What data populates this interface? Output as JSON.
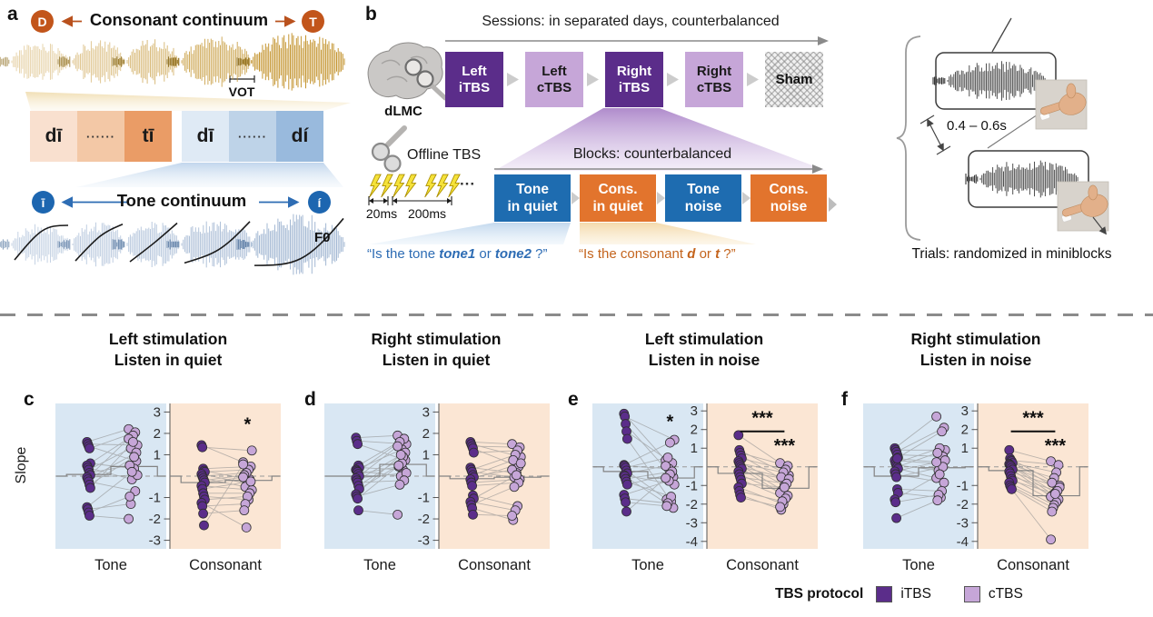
{
  "figure": {
    "panel_a": {
      "label": "a",
      "left_endpoint": "D",
      "right_endpoint": "T",
      "title": "Consonant continuum",
      "vot_label": "VOT",
      "syllable_boxes": [
        "dī",
        "······",
        "tī",
        "dī",
        "······",
        "dí"
      ],
      "tone_left_endpoint": "ī",
      "tone_right_endpoint": "í",
      "tone_title": "Tone continuum",
      "f0_label": "F0"
    },
    "panel_b": {
      "label": "b",
      "sessions_title": "Sessions: in separated days, counterbalanced",
      "target_label": "dLMC",
      "sessions": [
        {
          "line1": "Left",
          "line2": "iTBS",
          "variant": "dark"
        },
        {
          "line1": "Left",
          "line2": "cTBS",
          "variant": "light"
        },
        {
          "line1": "Right",
          "line2": "iTBS",
          "variant": "dark"
        },
        {
          "line1": "Right",
          "line2": "cTBS",
          "variant": "light"
        },
        {
          "line1": "Sham",
          "line2": "",
          "variant": "sham"
        }
      ],
      "offline_label": "Offline TBS",
      "ellipsis": "···",
      "pulse_interval": "20ms",
      "burst_interval": "200ms",
      "blocks_title": "Blocks: counterbalanced",
      "blocks": [
        {
          "line1": "Tone",
          "line2": "in quiet",
          "variant": "blue"
        },
        {
          "line1": "Cons.",
          "line2": "in quiet",
          "variant": "orange"
        },
        {
          "line1": "Tone",
          "line2": "noise",
          "variant": "blue"
        },
        {
          "line1": "Cons.",
          "line2": "noise",
          "variant": "orange"
        }
      ],
      "tone_question": {
        "prefix": "“Is the tone ",
        "word1": "tone1",
        "or": " or ",
        "word2": "tone2",
        "suffix": " ?”"
      },
      "consonant_question": {
        "prefix": "“Is the consonant ",
        "word1": "d",
        "or": " or ",
        "word2": "t",
        "suffix": " ?”"
      },
      "isi_label": "0.4 – 0.6s",
      "trials_note": "Trials: randomized in miniblocks"
    }
  },
  "chart_data": [
    {
      "type": "scatter",
      "panel_label": "c",
      "title1": "Left stimulation",
      "title2": "Listen in quiet",
      "ylabel": "Slope",
      "ylim": [
        -3.4,
        3.4
      ],
      "yticks": [
        3,
        2,
        1,
        -1,
        -2,
        -3
      ],
      "zero_line": true,
      "conditions": [
        {
          "name": "Tone",
          "itbs": [
            1.6,
            1.5,
            1.4,
            1.3,
            0.6,
            0.5,
            0.4,
            0.3,
            0.15,
            0.05,
            -0.05,
            -0.15,
            -0.25,
            -0.4,
            -0.55,
            -1.45,
            -1.55,
            -1.7,
            -1.85
          ],
          "ctbs": [
            2.2,
            1.45,
            0.7,
            2.05,
            0.35,
            1.9,
            -0.15,
            1.3,
            0.5,
            1.75,
            0.05,
            1.1,
            -0.7,
            0.9,
            1.6,
            0.2,
            -1.3,
            -0.95,
            -2.0
          ],
          "mean_itbs": 0.08,
          "mean_ctbs": 0.45,
          "sig_ctbs": null,
          "sig_pair": null
        },
        {
          "name": "Consonant",
          "itbs": [
            1.45,
            1.35,
            0.35,
            0.25,
            0.2,
            0.1,
            0.0,
            -0.1,
            -0.2,
            -0.3,
            -0.45,
            -0.6,
            -0.8,
            -0.95,
            -1.1,
            -1.25,
            -1.4,
            -1.75,
            -2.3
          ],
          "ctbs": [
            0.65,
            1.2,
            0.45,
            -0.15,
            0.3,
            -0.35,
            0.15,
            -0.5,
            0.05,
            -0.05,
            -0.65,
            -0.25,
            -0.8,
            -1.1,
            -0.95,
            -2.4,
            -1.3,
            -1.6,
            0.55
          ],
          "mean_itbs": -0.3,
          "mean_ctbs": -0.2,
          "sig_ctbs": "*",
          "sig_pair": null
        }
      ]
    },
    {
      "type": "scatter",
      "panel_label": "d",
      "title1": "Right stimulation",
      "title2": "Listen in quiet",
      "ylabel": "",
      "ylim": [
        -3.4,
        3.4
      ],
      "yticks": [
        3,
        2,
        1,
        -1,
        -2,
        -3
      ],
      "zero_line": true,
      "conditions": [
        {
          "name": "Tone",
          "itbs": [
            1.8,
            1.65,
            1.5,
            0.5,
            0.4,
            0.3,
            0.25,
            0.2,
            0.1,
            0.0,
            -0.1,
            -0.2,
            -0.3,
            -0.45,
            -0.6,
            -0.85,
            -0.95,
            -1.05,
            -1.6
          ],
          "ctbs": [
            1.9,
            1.5,
            0.75,
            1.75,
            0.3,
            1.25,
            0.0,
            1.6,
            0.45,
            1.4,
            0.15,
            1.1,
            -0.2,
            0.9,
            0.6,
            1.0,
            -0.4,
            0.5,
            -1.8
          ],
          "mean_itbs": 0.0,
          "mean_ctbs": 0.55,
          "sig_ctbs": null,
          "sig_pair": null
        },
        {
          "name": "Consonant",
          "itbs": [
            1.6,
            1.5,
            1.4,
            1.3,
            1.1,
            0.4,
            0.3,
            0.2,
            0.05,
            -0.05,
            -0.15,
            -0.3,
            -0.45,
            -0.9,
            -1.05,
            -1.2,
            -1.35,
            -1.5,
            -1.8
          ],
          "ctbs": [
            1.5,
            0.9,
            1.35,
            0.45,
            1.2,
            0.15,
            1.0,
            -0.05,
            0.75,
            0.3,
            0.6,
            -0.15,
            -0.3,
            -1.4,
            0.05,
            -1.6,
            -0.5,
            -2.05,
            -1.85
          ],
          "mean_itbs": -0.12,
          "mean_ctbs": -0.05,
          "sig_ctbs": null,
          "sig_pair": null
        }
      ]
    },
    {
      "type": "scatter",
      "panel_label": "e",
      "title1": "Left stimulation",
      "title2": "Listen in noise",
      "ylabel": "",
      "ylim": [
        -4.4,
        3.4
      ],
      "yticks": [
        3,
        2,
        1,
        -1,
        -2,
        -3,
        -4
      ],
      "zero_line": true,
      "conditions": [
        {
          "name": "Tone",
          "itbs": [
            2.85,
            2.7,
            2.3,
            1.9,
            1.5,
            0.1,
            0.05,
            -0.05,
            -0.2,
            -0.35,
            -0.45,
            -0.5,
            -0.65,
            -0.8,
            -0.95,
            -1.5,
            -1.7,
            -1.9,
            -2.4
          ],
          "ctbs": [
            0.35,
            1.45,
            -0.55,
            0.2,
            -1.85,
            1.3,
            -0.1,
            0.5,
            -1.75,
            0.05,
            -0.95,
            -2.2,
            -0.25,
            -1.6,
            -0.4,
            -0.75,
            -1.95,
            -2.1,
            -0.6
          ],
          "mean_itbs": -0.25,
          "mean_ctbs": -0.6,
          "sig_ctbs": "*",
          "sig_pair": null
        },
        {
          "name": "Consonant",
          "itbs": [
            1.7,
            0.9,
            0.75,
            0.6,
            0.45,
            0.3,
            0.2,
            0.1,
            0.0,
            -0.1,
            -0.25,
            -0.4,
            -0.55,
            -0.7,
            -0.9,
            -1.1,
            -1.3,
            -1.5,
            -1.65
          ],
          "ctbs": [
            0.2,
            -0.45,
            0.05,
            -0.8,
            -0.15,
            -1.0,
            -0.3,
            -1.25,
            -0.55,
            -1.4,
            -0.65,
            -1.55,
            -0.9,
            -1.7,
            -1.1,
            -2.0,
            -1.85,
            -2.3,
            -2.15
          ],
          "mean_itbs": -0.35,
          "mean_ctbs": -1.15,
          "sig_ctbs": "***",
          "sig_pair": "***"
        }
      ]
    },
    {
      "type": "scatter",
      "panel_label": "f",
      "title1": "Right stimulation",
      "title2": "Listen in noise",
      "ylabel": "",
      "ylim": [
        -4.4,
        3.4
      ],
      "yticks": [
        3,
        2,
        1,
        -1,
        -2,
        -3,
        -4
      ],
      "zero_line": true,
      "conditions": [
        {
          "name": "Tone",
          "itbs": [
            1.0,
            0.9,
            0.8,
            0.65,
            0.5,
            0.35,
            0.2,
            0.1,
            0.0,
            -0.1,
            -0.25,
            -0.4,
            -0.55,
            -1.2,
            -1.4,
            -1.75,
            -1.9,
            -2.75,
            0.45
          ],
          "ctbs": [
            2.7,
            0.9,
            2.1,
            0.55,
            1.9,
            0.15,
            1.0,
            -0.2,
            0.75,
            -0.6,
            0.35,
            -0.85,
            0.0,
            -1.3,
            -1.65,
            -0.4,
            -1.5,
            -1.8,
            0.25
          ],
          "mean_itbs": -0.5,
          "mean_ctbs": -0.05,
          "sig_ctbs": null,
          "sig_pair": null
        },
        {
          "name": "Consonant",
          "itbs": [
            0.9,
            0.45,
            0.35,
            0.3,
            0.2,
            0.15,
            0.1,
            0.05,
            -0.05,
            -0.15,
            -0.25,
            -0.35,
            -0.5,
            -0.65,
            -0.75,
            -0.85,
            -1.0,
            -1.1,
            -1.2
          ],
          "ctbs": [
            0.3,
            -1.0,
            0.1,
            -1.2,
            -0.3,
            -1.4,
            -0.6,
            -1.5,
            -0.85,
            -1.6,
            -1.1,
            -1.75,
            -1.3,
            -1.9,
            -1.45,
            -2.05,
            -2.2,
            -2.4,
            -3.9
          ],
          "mean_itbs": -0.2,
          "mean_ctbs": -1.55,
          "sig_ctbs": "***",
          "sig_pair": "***"
        }
      ]
    }
  ],
  "legend": {
    "title": "TBS protocol",
    "items": [
      {
        "label": "iTBS",
        "color": "#5b2d8a"
      },
      {
        "label": "cTBS",
        "color": "#c6a6d8"
      }
    ]
  },
  "colors": {
    "itbs": "#5b2d8a",
    "ctbs": "#c6a6d8",
    "tone_bg": "#d9e7f3",
    "consonant_bg": "#fbe6d4",
    "block_blue": "#1e6cb0",
    "block_orange": "#e2742d",
    "consonant_accent": "#c2551b",
    "tone_accent": "#1d66b0",
    "gold_wave": "#c49531",
    "tone_wave": "#8fa9ca"
  }
}
